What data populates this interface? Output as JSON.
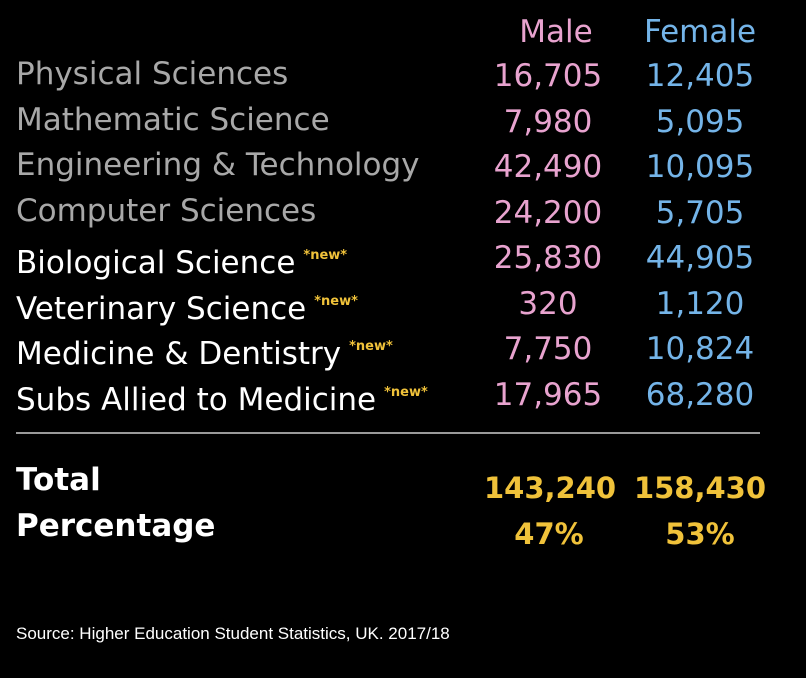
{
  "colors": {
    "male": "#e8a3cf",
    "female": "#74b4e8",
    "tag": "#f0c23a",
    "total": "#f0c23a"
  },
  "chart_data": {
    "type": "table",
    "columns": [
      "Male",
      "Female"
    ],
    "rows": [
      {
        "label": "Physical Sciences",
        "tag": "",
        "male": "16,705",
        "female": "12,405"
      },
      {
        "label": "Mathematic Science",
        "tag": "",
        "male": "7,980",
        "female": "5,095"
      },
      {
        "label": "Engineering & Technology",
        "tag": "",
        "male": "42,490",
        "female": "10,095"
      },
      {
        "label": "Computer Sciences",
        "tag": "",
        "male": "24,200",
        "female": "5,705"
      },
      {
        "label": "Biological Science",
        "tag": "*new*",
        "male": "25,830",
        "female": "44,905"
      },
      {
        "label": "Veterinary Science",
        "tag": "*new*",
        "male": "320",
        "female": "1,120"
      },
      {
        "label": "Medicine & Dentistry",
        "tag": "*new*",
        "male": "7,750",
        "female": "10,824"
      },
      {
        "label": "Subs Allied to Medicine",
        "tag": "*new*",
        "male": "17,965",
        "female": "68,280"
      }
    ],
    "summary": [
      {
        "label": "Total",
        "male": "143,240",
        "female": "158,430"
      },
      {
        "label": "Percentage",
        "male": "47%",
        "female": "53%"
      }
    ],
    "source": "Source: Higher Education Student Statistics, UK. 2017/18"
  }
}
